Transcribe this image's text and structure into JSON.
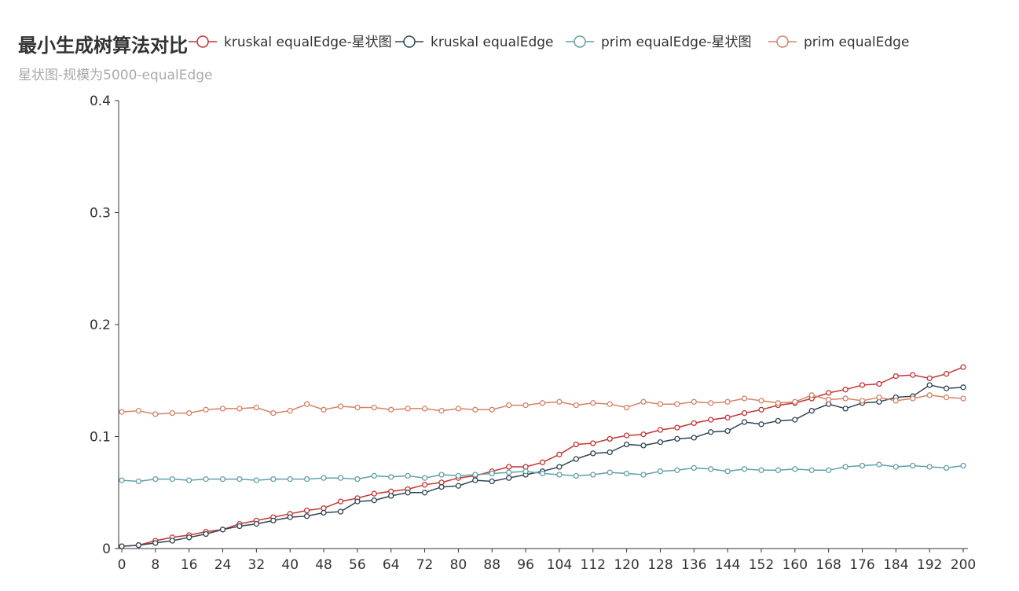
{
  "chart_data": {
    "type": "line",
    "title": "最小生成树算法对比",
    "subtitle": "星状图-规模为5000-equalEdge",
    "xlabel": "",
    "ylabel": "",
    "xlim": [
      0,
      200
    ],
    "ylim": [
      0,
      0.4
    ],
    "x_ticks": [
      "0",
      "8",
      "16",
      "24",
      "32",
      "40",
      "48",
      "56",
      "64",
      "72",
      "80",
      "88",
      "96",
      "104",
      "112",
      "120",
      "128",
      "136",
      "144",
      "152",
      "160",
      "168",
      "176",
      "184",
      "192",
      "200"
    ],
    "y_ticks": [
      "0",
      "0.1",
      "0.2",
      "0.3",
      "0.4"
    ],
    "grid": false,
    "legend_position": "top",
    "x": [
      0,
      4,
      8,
      12,
      16,
      20,
      24,
      28,
      32,
      36,
      40,
      44,
      48,
      52,
      56,
      60,
      64,
      68,
      72,
      76,
      80,
      84,
      88,
      92,
      96,
      100,
      104,
      108,
      112,
      116,
      120,
      124,
      128,
      132,
      136,
      140,
      144,
      148,
      152,
      156,
      160,
      164,
      168,
      172,
      176,
      180,
      184,
      188,
      192,
      196,
      200
    ],
    "series": [
      {
        "name": "kruskal equalEdge-星状图",
        "color": "#c23531",
        "values": [
          0.002,
          0.003,
          0.007,
          0.01,
          0.012,
          0.015,
          0.017,
          0.022,
          0.025,
          0.028,
          0.031,
          0.034,
          0.036,
          0.042,
          0.045,
          0.049,
          0.051,
          0.053,
          0.057,
          0.059,
          0.063,
          0.065,
          0.069,
          0.073,
          0.073,
          0.077,
          0.084,
          0.093,
          0.094,
          0.098,
          0.101,
          0.102,
          0.106,
          0.108,
          0.112,
          0.115,
          0.117,
          0.121,
          0.124,
          0.128,
          0.13,
          0.134,
          0.139,
          0.142,
          0.146,
          0.147,
          0.154,
          0.155,
          0.152,
          0.156,
          0.162
        ]
      },
      {
        "name": "kruskal equalEdge",
        "color": "#2f4554",
        "values": [
          0.002,
          0.003,
          0.005,
          0.007,
          0.01,
          0.013,
          0.017,
          0.02,
          0.022,
          0.025,
          0.028,
          0.029,
          0.032,
          0.033,
          0.042,
          0.043,
          0.047,
          0.05,
          0.05,
          0.055,
          0.056,
          0.061,
          0.06,
          0.063,
          0.066,
          0.069,
          0.073,
          0.08,
          0.085,
          0.086,
          0.093,
          0.092,
          0.095,
          0.098,
          0.099,
          0.104,
          0.105,
          0.113,
          0.111,
          0.114,
          0.115,
          0.123,
          0.129,
          0.125,
          0.13,
          0.131,
          0.135,
          0.136,
          0.146,
          0.143,
          0.144
        ]
      },
      {
        "name": "prim equalEdge-星状图",
        "color": "#61a0a8",
        "values": [
          0.061,
          0.06,
          0.062,
          0.062,
          0.061,
          0.062,
          0.062,
          0.062,
          0.061,
          0.062,
          0.062,
          0.062,
          0.063,
          0.063,
          0.062,
          0.065,
          0.064,
          0.065,
          0.063,
          0.066,
          0.065,
          0.066,
          0.067,
          0.068,
          0.069,
          0.067,
          0.066,
          0.065,
          0.066,
          0.068,
          0.067,
          0.066,
          0.069,
          0.07,
          0.072,
          0.071,
          0.069,
          0.071,
          0.07,
          0.07,
          0.071,
          0.07,
          0.07,
          0.073,
          0.074,
          0.075,
          0.073,
          0.074,
          0.073,
          0.072,
          0.074
        ]
      },
      {
        "name": "prim equalEdge",
        "color": "#d48265",
        "values": [
          0.122,
          0.123,
          0.12,
          0.121,
          0.121,
          0.124,
          0.125,
          0.125,
          0.126,
          0.121,
          0.123,
          0.129,
          0.124,
          0.127,
          0.126,
          0.126,
          0.124,
          0.125,
          0.125,
          0.123,
          0.125,
          0.124,
          0.124,
          0.128,
          0.128,
          0.13,
          0.131,
          0.128,
          0.13,
          0.129,
          0.126,
          0.131,
          0.129,
          0.129,
          0.131,
          0.13,
          0.131,
          0.134,
          0.132,
          0.13,
          0.131,
          0.137,
          0.133,
          0.134,
          0.132,
          0.135,
          0.132,
          0.134,
          0.137,
          0.135,
          0.134
        ]
      }
    ]
  }
}
